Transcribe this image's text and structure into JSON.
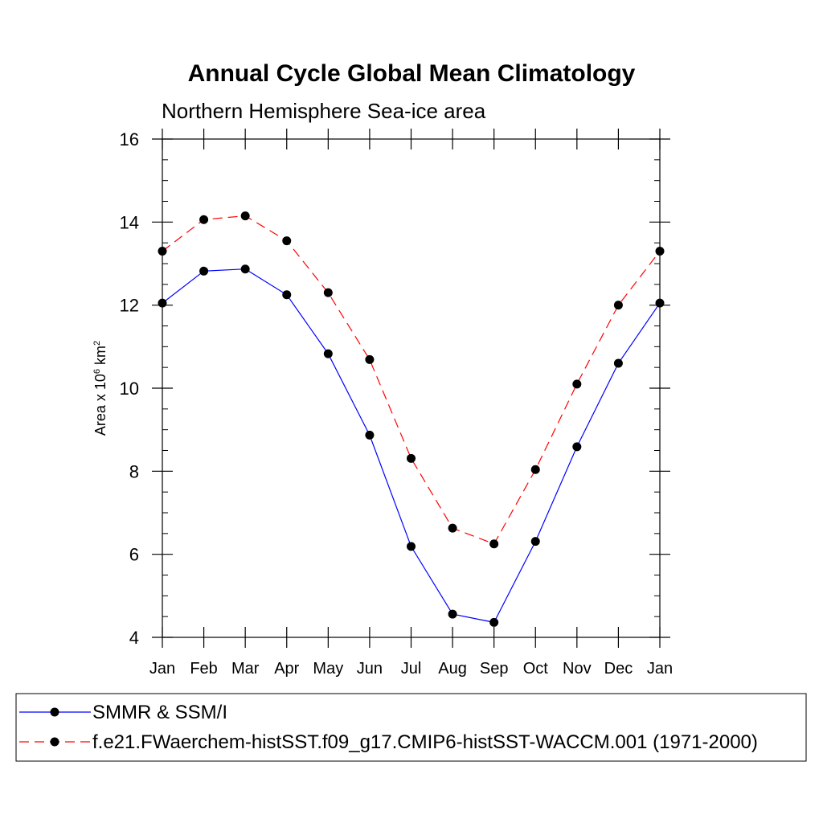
{
  "chart_data": {
    "type": "line",
    "title": "Annual Cycle Global Mean Climatology",
    "subtitle": "Northern Hemisphere Sea-ice area",
    "ylabel": {
      "prefix": "Area x 10",
      "exponent": "6",
      "unit": " km",
      "unit_exponent": "2"
    },
    "xlabel": "",
    "categories": [
      "Jan",
      "Feb",
      "Mar",
      "Apr",
      "May",
      "Jun",
      "Jul",
      "Aug",
      "Sep",
      "Oct",
      "Nov",
      "Dec",
      "Jan"
    ],
    "ylim": [
      4,
      16
    ],
    "yticks": [
      4,
      6,
      8,
      10,
      12,
      14,
      16
    ],
    "yminor_step": 0.5,
    "series": [
      {
        "name": "SMMR & SSM/I",
        "color": "#0000ff",
        "dashed": false,
        "values": [
          12.05,
          12.82,
          12.87,
          12.25,
          10.83,
          8.87,
          6.19,
          4.56,
          4.36,
          6.31,
          8.59,
          10.6,
          12.05
        ]
      },
      {
        "name": "f.e21.FWaerchem-histSST.f09_g17.CMIP6-histSST-WACCM.001 (1971-2000)",
        "color": "#ff0000",
        "dashed": true,
        "values": [
          13.3,
          14.06,
          14.15,
          13.55,
          12.3,
          10.69,
          8.31,
          6.63,
          6.25,
          8.04,
          10.1,
          12.0,
          13.3
        ]
      }
    ]
  }
}
